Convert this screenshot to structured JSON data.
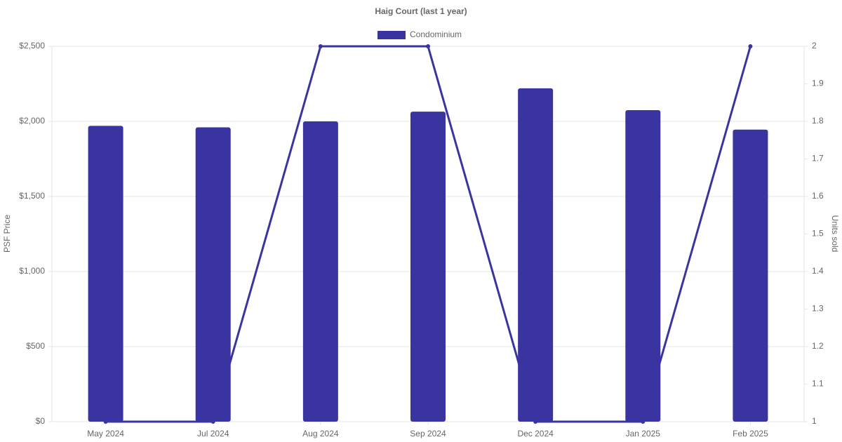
{
  "chart_data": {
    "type": "bar",
    "title": "Haig Court (last 1 year)",
    "categories": [
      "May 2024",
      "Jul 2024",
      "Aug 2024",
      "Sep 2024",
      "Dec 2024",
      "Jan 2025",
      "Feb 2025"
    ],
    "series": [
      {
        "name": "Condominium",
        "type": "bar",
        "color": "#3934a0",
        "values": [
          1970,
          1960,
          2000,
          2065,
          2220,
          2075,
          1945
        ]
      },
      {
        "type": "line",
        "axis": "y2",
        "color": "#3934a0",
        "values": [
          1,
          1,
          2,
          2,
          1,
          1,
          2
        ]
      }
    ],
    "ylabel": "PSF Price",
    "y2label": "Units sold",
    "ylim": [
      0,
      2500
    ],
    "yticks": [
      {
        "value": 0,
        "label": "$0"
      },
      {
        "value": 500,
        "label": "$500"
      },
      {
        "value": 1000,
        "label": "$1,000"
      },
      {
        "value": 1500,
        "label": "$1,500"
      },
      {
        "value": 2000,
        "label": "$2,000"
      },
      {
        "value": 2500,
        "label": "$2,500"
      }
    ],
    "y2lim": [
      1,
      2
    ],
    "y2ticks": [
      1,
      1.1,
      1.2,
      1.3,
      1.4,
      1.5,
      1.6,
      1.7,
      1.8,
      1.9,
      2
    ],
    "grid": true,
    "legend": "top"
  }
}
